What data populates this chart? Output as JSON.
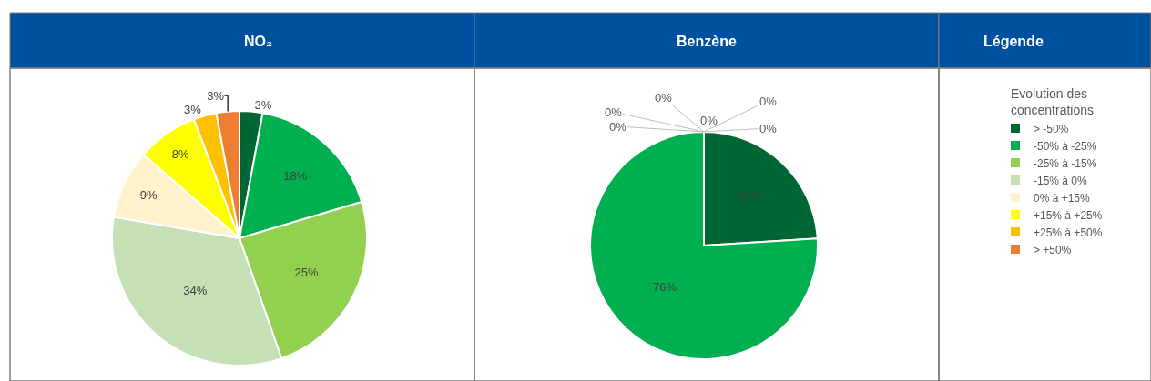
{
  "chart_data": [
    {
      "type": "pie",
      "title": "NO₂",
      "categories": [
        "> -50%",
        "-50% à -25%",
        "-25% à -15%",
        "-15% à 0%",
        "0% à +15%",
        "+15% à +25%",
        "+25% à +50%",
        "> +50%"
      ],
      "values": [
        3,
        18,
        25,
        34,
        9,
        8,
        3,
        3
      ],
      "value_labels": [
        "3%",
        "18%",
        "25%",
        "34%",
        "9%",
        "8%",
        "3%",
        "3%"
      ],
      "colors": [
        "#006633",
        "#00b050",
        "#92d050",
        "#c5e0b4",
        "#fff2cc",
        "#ffff00",
        "#ffc000",
        "#ed7d31"
      ],
      "legend": "right",
      "legend_title": "Evolution des concentrations"
    },
    {
      "type": "pie",
      "title": "Benzène",
      "categories": [
        null,
        null,
        null,
        null,
        null,
        null,
        null,
        null
      ],
      "values": [
        24,
        76,
        0,
        0,
        0,
        0,
        0,
        0
      ],
      "value_labels": [
        "24%",
        "76%",
        "0%",
        "0%",
        "0%",
        "0%",
        "0%",
        "0%"
      ],
      "colors": [
        "#006633",
        "#00b050",
        "#92d050",
        "#c5e0b4",
        "#fff2cc",
        "#ffff00",
        "#ffc000",
        "#ed7d31"
      ]
    },
    {
      "type": "other",
      "title": "Légende"
    }
  ]
}
